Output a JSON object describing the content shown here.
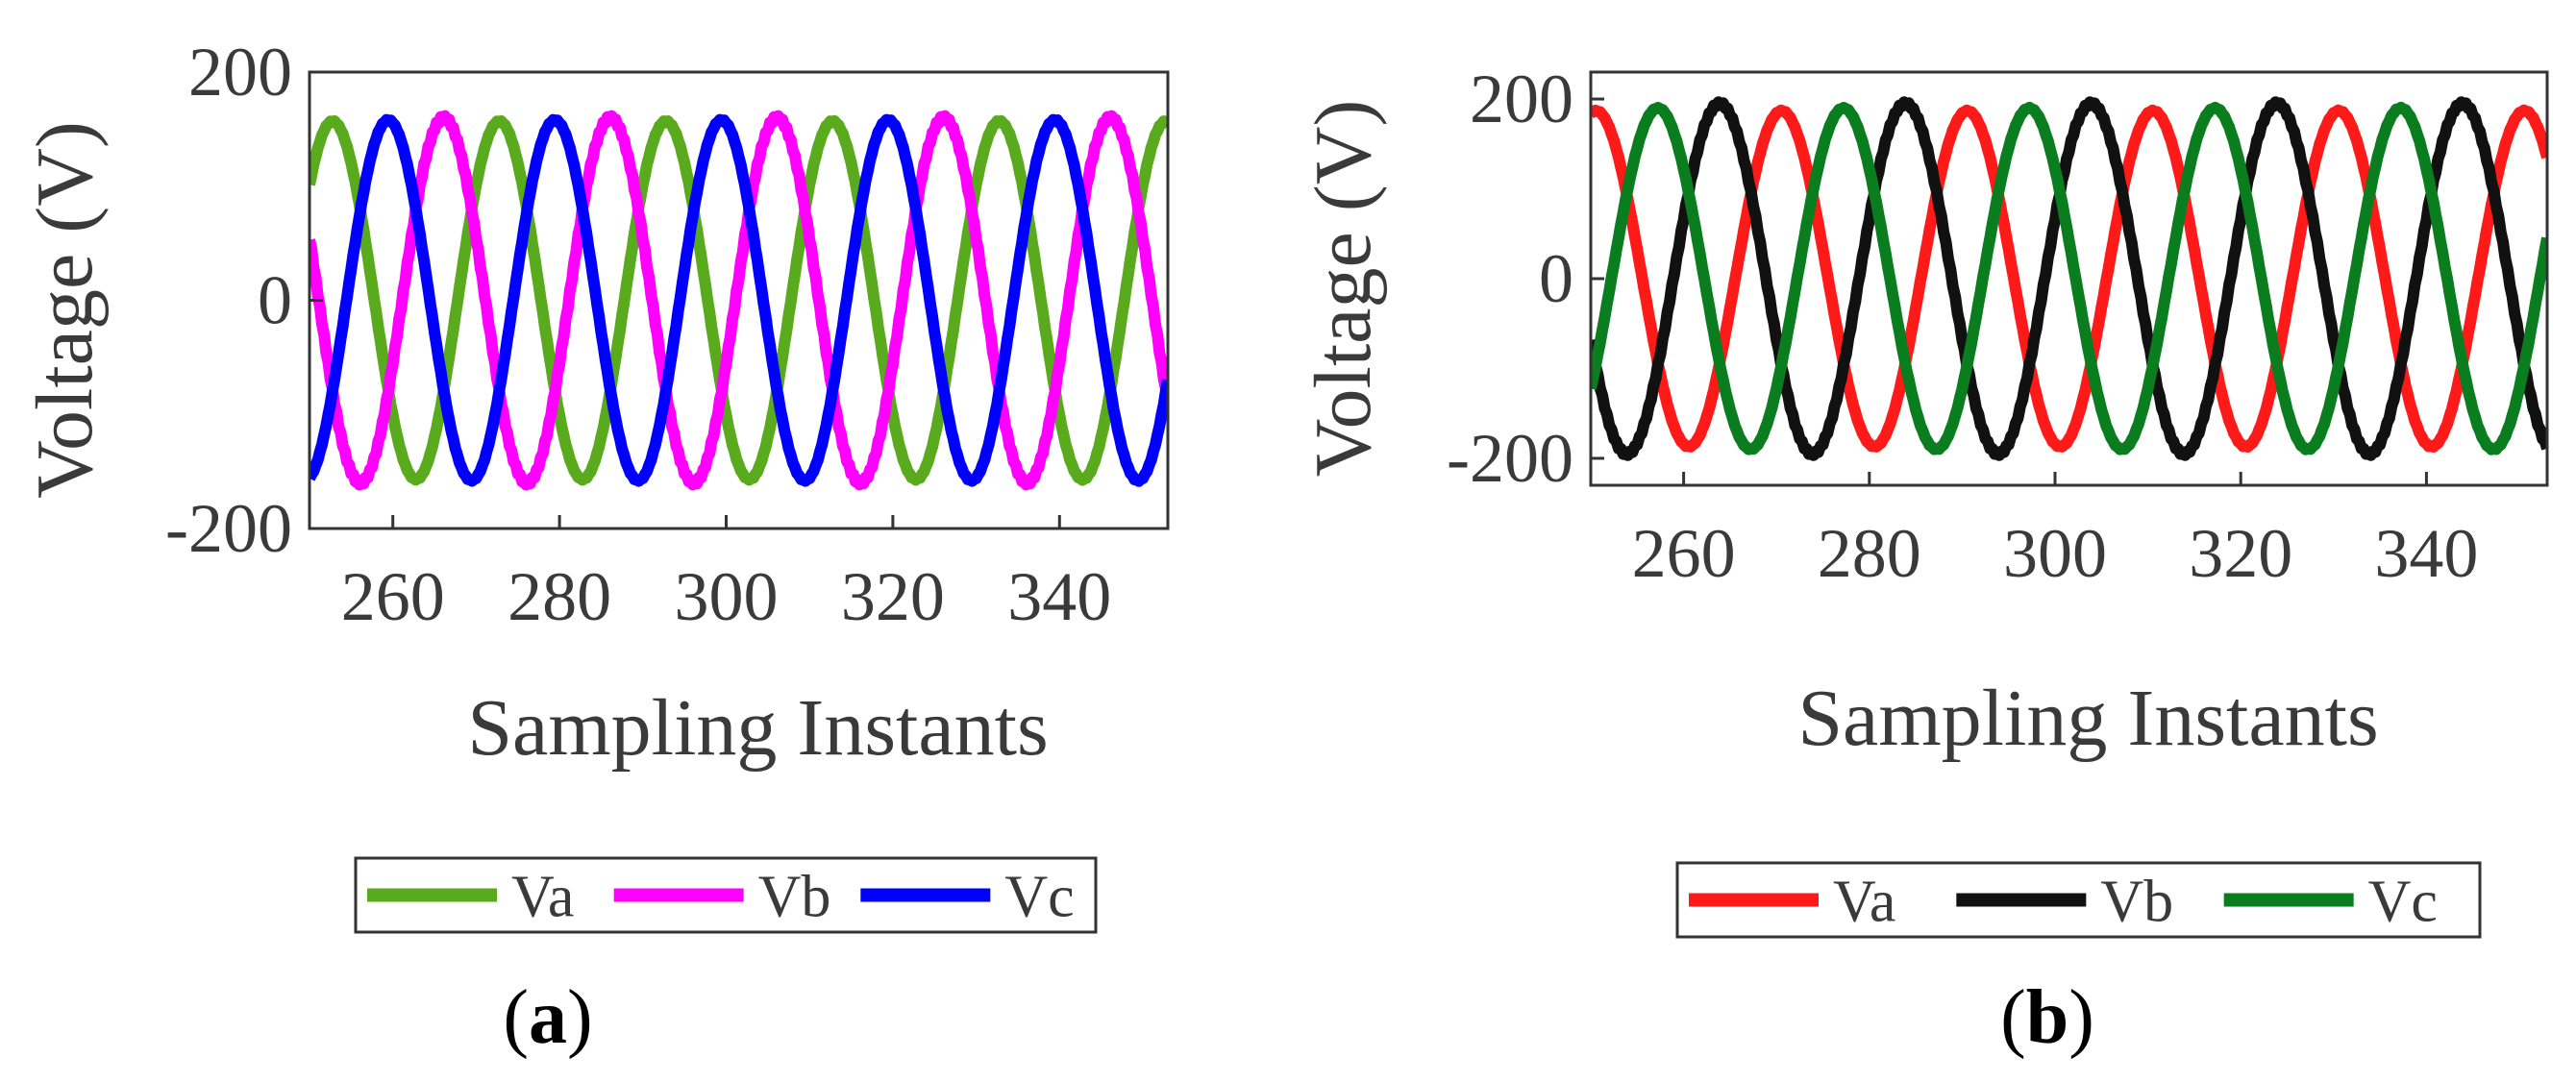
{
  "chart_data": [
    {
      "type": "line",
      "panel_label": "a",
      "xlabel": "Sampling Instants",
      "ylabel": "Voltage (V)",
      "xlim": [
        250,
        353
      ],
      "ylim": [
        -200,
        200
      ],
      "xticks": [
        260,
        280,
        300,
        320,
        340
      ],
      "xtick_labels": [
        "260",
        "280",
        "300",
        "320",
        "340"
      ],
      "yticks": [
        200,
        0,
        -200
      ],
      "ytick_labels": [
        "200",
        "0",
        "-200"
      ],
      "grid": false,
      "legend_position": "bottom",
      "period": 20,
      "series": [
        {
          "name": "Va",
          "color": "#5aaa1e",
          "amplitude": 157,
          "phase_deg": 40
        },
        {
          "name": "Vb",
          "color": "#ff00ff",
          "amplitude": 160,
          "phase_deg": 160
        },
        {
          "name": "Vc",
          "color": "#0000ff",
          "amplitude": 158,
          "phase_deg": 280
        }
      ]
    },
    {
      "type": "line",
      "panel_label": "b",
      "xlabel": "Sampling Instants",
      "ylabel": "Voltage (V)",
      "xlim": [
        250,
        353
      ],
      "ylim": [
        -230,
        230
      ],
      "xticks": [
        260,
        280,
        300,
        320,
        340
      ],
      "xtick_labels": [
        "260",
        "280",
        "300",
        "320",
        "340"
      ],
      "yticks": [
        200,
        0,
        -200
      ],
      "ytick_labels": [
        "200",
        "0",
        "-200"
      ],
      "grid": false,
      "legend_position": "bottom",
      "period": 20,
      "series": [
        {
          "name": "Va",
          "color": "#ff1a1a",
          "amplitude": 187,
          "phase_deg": 80
        },
        {
          "name": "Vb",
          "color": "#111111",
          "amplitude": 195,
          "phase_deg": 200
        },
        {
          "name": "Vc",
          "color": "#0a7d1e",
          "amplitude": 190,
          "phase_deg": 320
        }
      ]
    }
  ]
}
